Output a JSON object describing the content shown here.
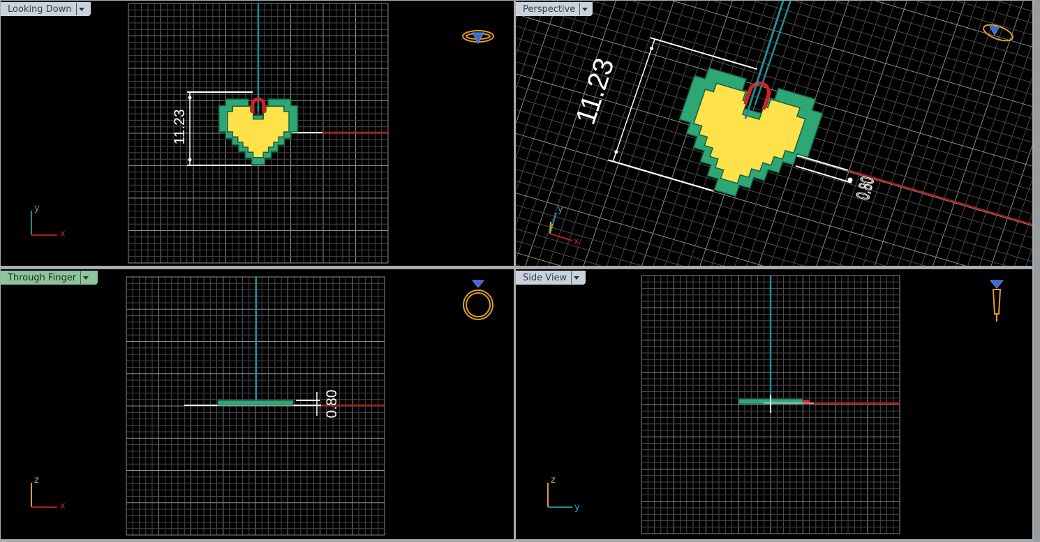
{
  "viewports": [
    {
      "title": "Looking Down",
      "active": false
    },
    {
      "title": "Perspective",
      "active": false
    },
    {
      "title": "Through Finger",
      "active": true
    },
    {
      "title": "Side View",
      "active": false
    }
  ],
  "dimensions": {
    "height": "11.23",
    "thickness": "0.80"
  },
  "axes": {
    "x": "x",
    "y": "y",
    "z": "z"
  },
  "colors": {
    "background": "#000000",
    "grid_minor": "#4a4a4a",
    "grid_major": "#8c8c8c",
    "x_axis": "#b01c1c",
    "y_axis": "#1c8e9a",
    "z_axis": "#d9a21e",
    "heart_fill": "#ffe24a",
    "heart_border": "#2ea776",
    "bail": "#d82020",
    "active_tab": "#8ec49a",
    "tab": "#c9d3dd"
  },
  "icons": [
    "ring-top-gizmo-icon",
    "ring-perspective-gizmo-icon",
    "ring-front-gizmo-icon",
    "ring-side-gizmo-icon",
    "viewport-menu-chevron-icon"
  ]
}
